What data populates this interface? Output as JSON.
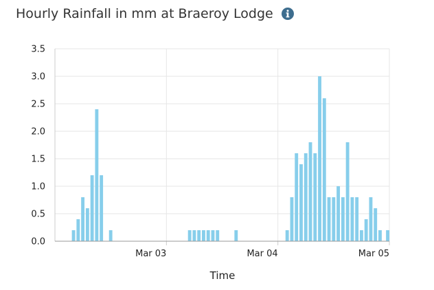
{
  "header": {
    "title": "Hourly Rainfall in mm at Braeroy Lodge",
    "info_icon": "info-icon"
  },
  "colors": {
    "bar": "#87ceeb",
    "grid": "#e6e6e6",
    "axis": "#cccccc",
    "info_icon": "#3d6d8e"
  },
  "chart_data": {
    "type": "bar",
    "xlabel": "Time",
    "ylabel": "",
    "ylim": [
      0,
      3.5
    ],
    "yticks": [
      "0.0",
      "0.5",
      "1.0",
      "1.5",
      "2.0",
      "2.5",
      "3.0",
      "3.5"
    ],
    "xlim": [
      "2023-03-02T00:00",
      "2023-03-05T00:00"
    ],
    "xticks": [
      {
        "time": "2023-03-03T00:00",
        "label": "Mar 03"
      },
      {
        "time": "2023-03-04T00:00",
        "label": "Mar 04"
      },
      {
        "time": "2023-03-05T00:00",
        "label": "Mar 05"
      }
    ],
    "grid": true,
    "series": [
      {
        "values": [
          {
            "time": "2023-03-02T04:00",
            "value": 0.2
          },
          {
            "time": "2023-03-02T05:00",
            "value": 0.4
          },
          {
            "time": "2023-03-02T06:00",
            "value": 0.8
          },
          {
            "time": "2023-03-02T07:00",
            "value": 0.6
          },
          {
            "time": "2023-03-02T08:00",
            "value": 1.2
          },
          {
            "time": "2023-03-02T09:00",
            "value": 2.4
          },
          {
            "time": "2023-03-02T10:00",
            "value": 1.2
          },
          {
            "time": "2023-03-02T12:00",
            "value": 0.2
          },
          {
            "time": "2023-03-03T05:00",
            "value": 0.2
          },
          {
            "time": "2023-03-03T06:00",
            "value": 0.2
          },
          {
            "time": "2023-03-03T07:00",
            "value": 0.2
          },
          {
            "time": "2023-03-03T08:00",
            "value": 0.2
          },
          {
            "time": "2023-03-03T09:00",
            "value": 0.2
          },
          {
            "time": "2023-03-03T10:00",
            "value": 0.2
          },
          {
            "time": "2023-03-03T11:00",
            "value": 0.2
          },
          {
            "time": "2023-03-03T15:00",
            "value": 0.2
          },
          {
            "time": "2023-03-04T02:00",
            "value": 0.2
          },
          {
            "time": "2023-03-04T03:00",
            "value": 0.8
          },
          {
            "time": "2023-03-04T04:00",
            "value": 1.6
          },
          {
            "time": "2023-03-04T05:00",
            "value": 1.4
          },
          {
            "time": "2023-03-04T06:00",
            "value": 1.6
          },
          {
            "time": "2023-03-04T07:00",
            "value": 1.8
          },
          {
            "time": "2023-03-04T08:00",
            "value": 1.6
          },
          {
            "time": "2023-03-04T09:00",
            "value": 3.0
          },
          {
            "time": "2023-03-04T10:00",
            "value": 2.6
          },
          {
            "time": "2023-03-04T11:00",
            "value": 0.8
          },
          {
            "time": "2023-03-04T12:00",
            "value": 0.8
          },
          {
            "time": "2023-03-04T13:00",
            "value": 1.0
          },
          {
            "time": "2023-03-04T14:00",
            "value": 0.8
          },
          {
            "time": "2023-03-04T15:00",
            "value": 1.8
          },
          {
            "time": "2023-03-04T16:00",
            "value": 0.8
          },
          {
            "time": "2023-03-04T17:00",
            "value": 0.8
          },
          {
            "time": "2023-03-04T18:00",
            "value": 0.2
          },
          {
            "time": "2023-03-04T19:00",
            "value": 0.4
          },
          {
            "time": "2023-03-04T20:00",
            "value": 0.8
          },
          {
            "time": "2023-03-04T21:00",
            "value": 0.6
          },
          {
            "time": "2023-03-04T22:00",
            "value": 0.2
          },
          {
            "time": "2023-03-05T00:00",
            "value": 0.2
          }
        ]
      }
    ]
  }
}
